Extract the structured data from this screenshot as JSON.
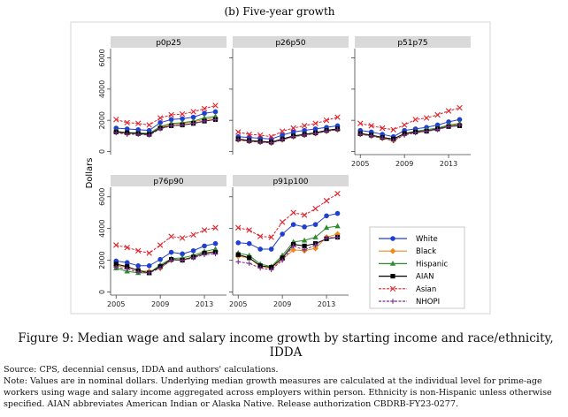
{
  "subtitle": "(b) Five-year growth",
  "caption": "Figure 9: Median wage and salary income growth by starting income and race/ethnicity, IDDA",
  "notes": [
    "Source: CPS, decennial census, IDDA and authors' calculations.",
    "Note: Values are in nominal dollars. Underlying median growth measures are calculated at the individual level for prime-age",
    "workers using wage and salary income aggregated across employers within person. Ethnicity is non-Hispanic unless otherwise",
    "specified. AIAN abbreviates American Indian or Alaska Native. Release authorization CBDRB-FY23-0277."
  ],
  "chart_data": {
    "type": "line",
    "ylabel": "Dollars",
    "xlabel": "",
    "ylim": [
      -200,
      6600
    ],
    "xlim": [
      2004.5,
      2015
    ],
    "yticks": [
      0,
      2000,
      4000,
      6000
    ],
    "xticks": [
      2005,
      2009,
      2013
    ],
    "grid": false,
    "legend": "bottom-right",
    "x": [
      2005,
      2006,
      2007,
      2008,
      2009,
      2010,
      2011,
      2012,
      2013,
      2014
    ],
    "series_style": [
      {
        "name": "White",
        "color": "#1f3fd1",
        "marker": "circle"
      },
      {
        "name": "Black",
        "color": "#f08a1c",
        "marker": "diamond"
      },
      {
        "name": "Hispanic",
        "color": "#2e8b2e",
        "marker": "triangle"
      },
      {
        "name": "AIAN",
        "color": "#000000",
        "marker": "square"
      },
      {
        "name": "Asian",
        "color": "#e0202a",
        "marker": "x"
      },
      {
        "name": "NHOPI",
        "color": "#7a2e8f",
        "marker": "plus"
      }
    ],
    "panels": [
      {
        "title": "p0p25",
        "series": [
          {
            "name": "White",
            "values": [
              1500,
              1450,
              1400,
              1350,
              1850,
              2050,
              2100,
              2200,
              2450,
              2550
            ]
          },
          {
            "name": "Black",
            "values": [
              1250,
              1150,
              1150,
              1100,
              1550,
              1750,
              1800,
              1900,
              2050,
              2150
            ]
          },
          {
            "name": "Hispanic",
            "values": [
              1300,
              1200,
              1200,
              1150,
              1600,
              1800,
              1850,
              1950,
              2150,
              2250
            ]
          },
          {
            "name": "AIAN",
            "values": [
              1250,
              1200,
              1150,
              1100,
              1500,
              1650,
              1700,
              1800,
              1950,
              2050
            ]
          },
          {
            "name": "Asian",
            "values": [
              2050,
              1850,
              1800,
              1700,
              2150,
              2350,
              2400,
              2550,
              2750,
              2950
            ]
          },
          {
            "name": "NHOPI",
            "values": [
              1200,
              1100,
              1100,
              1050,
              1450,
              1650,
              1700,
              1800,
              1950,
              2050
            ]
          }
        ]
      },
      {
        "title": "p26p50",
        "series": [
          {
            "name": "White",
            "values": [
              950,
              900,
              850,
              800,
              1050,
              1250,
              1350,
              1450,
              1550,
              1650
            ]
          },
          {
            "name": "Black",
            "values": [
              750,
              650,
              600,
              550,
              750,
              950,
              1050,
              1150,
              1300,
              1400
            ]
          },
          {
            "name": "Hispanic",
            "values": [
              800,
              700,
              650,
              600,
              800,
              1000,
              1100,
              1200,
              1350,
              1450
            ]
          },
          {
            "name": "AIAN",
            "values": [
              800,
              700,
              650,
              600,
              800,
              1000,
              1100,
              1200,
              1350,
              1450
            ]
          },
          {
            "name": "Asian",
            "values": [
              1250,
              1100,
              1050,
              950,
              1300,
              1500,
              1650,
              1800,
              2000,
              2200
            ]
          },
          {
            "name": "NHOPI",
            "values": [
              750,
              650,
              600,
              550,
              750,
              950,
              1050,
              1150,
              1300,
              1400
            ]
          }
        ]
      },
      {
        "title": "p51p75",
        "series": [
          {
            "name": "White",
            "values": [
              1350,
              1250,
              1100,
              950,
              1350,
              1450,
              1550,
              1700,
              1900,
              2050
            ]
          },
          {
            "name": "Black",
            "values": [
              1100,
              1000,
              850,
              700,
              1100,
              1250,
              1350,
              1450,
              1650,
              1750
            ]
          },
          {
            "name": "Hispanic",
            "values": [
              1150,
              1050,
              900,
              800,
              1150,
              1300,
              1400,
              1500,
              1700,
              1800
            ]
          },
          {
            "name": "AIAN",
            "values": [
              1150,
              1050,
              900,
              800,
              1150,
              1250,
              1300,
              1450,
              1600,
              1650
            ]
          },
          {
            "name": "Asian",
            "values": [
              1800,
              1650,
              1500,
              1400,
              1700,
              2050,
              2150,
              2350,
              2600,
              2800
            ]
          },
          {
            "name": "NHOPI",
            "values": [
              1100,
              1000,
              850,
              700,
              1050,
              1200,
              1300,
              1400,
              1600,
              1700
            ]
          }
        ]
      },
      {
        "title": "p76p90",
        "series": [
          {
            "name": "White",
            "values": [
              1950,
              1850,
              1650,
              1650,
              2050,
              2500,
              2400,
              2600,
              2900,
              3050
            ]
          },
          {
            "name": "Black",
            "values": [
              1650,
              1550,
              1350,
              1300,
              1500,
              2000,
              2050,
              2200,
              2450,
              2550
            ]
          },
          {
            "name": "Hispanic",
            "values": [
              1500,
              1300,
              1200,
              1200,
              1700,
              2100,
              2150,
              2300,
              2550,
              2700
            ]
          },
          {
            "name": "AIAN",
            "values": [
              1750,
              1600,
              1350,
              1200,
              1600,
              2050,
              2000,
              2200,
              2450,
              2500
            ]
          },
          {
            "name": "Asian",
            "values": [
              2950,
              2800,
              2600,
              2450,
              2950,
              3500,
              3400,
              3600,
              3900,
              4050
            ]
          },
          {
            "name": "NHOPI",
            "values": [
              1550,
              1450,
              1250,
              1200,
              1500,
              2000,
              2000,
              2150,
              2350,
              2400
            ]
          }
        ]
      },
      {
        "title": "p91p100",
        "series": [
          {
            "name": "White",
            "values": [
              3100,
              3050,
              2700,
              2700,
              3650,
              4250,
              4100,
              4250,
              4800,
              4950
            ]
          },
          {
            "name": "Black",
            "values": [
              2250,
              2150,
              1600,
              1500,
              2050,
              2650,
              2600,
              2750,
              3450,
              3650
            ]
          },
          {
            "name": "Hispanic",
            "values": [
              2450,
              2300,
              1750,
              1600,
              2300,
              3150,
              3250,
              3450,
              4050,
              4150
            ]
          },
          {
            "name": "AIAN",
            "values": [
              2350,
              2150,
              1650,
              1550,
              2150,
              3000,
              2900,
              3050,
              3350,
              3450
            ]
          },
          {
            "name": "Asian",
            "values": [
              4050,
              3900,
              3500,
              3450,
              4400,
              5000,
              4850,
              5250,
              5750,
              6200
            ]
          },
          {
            "name": "NHOPI",
            "values": [
              1900,
              1800,
              1500,
              1400,
              2000,
              2900,
              2650,
              2950,
              3400,
              3450
            ]
          }
        ]
      }
    ]
  }
}
